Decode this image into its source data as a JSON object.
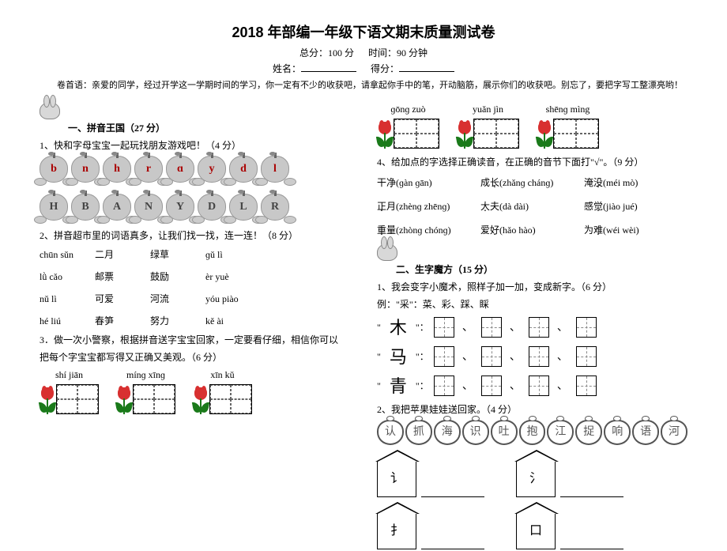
{
  "header": {
    "title": "2018 年部编一年级下语文期末质量测试卷",
    "total_label": "总分：100 分",
    "time_label": "时间：90 分钟",
    "name_label": "姓名：",
    "score_label": "得分："
  },
  "intro": "卷首语：亲爱的同学，经过开学这一学期时间的学习，你一定有不少的收获吧，请拿起你手中的笔，开动脑筋，展示你们的收获吧。别忘了，要把字写工整漂亮哟！",
  "s1": {
    "title": "一、拼音王国（27 分）",
    "q1": "1、快和字母宝宝一起玩找朋友游戏吧！（4 分）",
    "apples1": [
      "b",
      "n",
      "h",
      "r",
      "ɑ",
      "y",
      "d",
      "l"
    ],
    "apples2": [
      "H",
      "B",
      "A",
      "N",
      "Y",
      "D",
      "L",
      "R"
    ],
    "q2": "2、拼音超市里的词语真多，让我们找一找，连一连！（8 分）",
    "match": [
      [
        "chūn sǔn",
        "二月",
        "绿草",
        "ɡǔ lì"
      ],
      [
        "lǜ cǎo",
        "邮票",
        "鼓励",
        "èr yuè"
      ],
      [
        "nǔ lì",
        "可爱",
        "河流",
        "yóu  piào"
      ],
      [
        "hé liú",
        "春笋",
        "努力",
        "kě ài"
      ]
    ],
    "q3a": "3．做一次小警察，根据拼音送字宝宝回家，一定要看仔细，相信你可以",
    "q3b": "把每个字宝宝都写得又正确又美观。（6 分）",
    "boxes_left": [
      {
        "pinyin": "shí   jiān"
      },
      {
        "pinyin": "mínɡ  xīnɡ"
      },
      {
        "pinyin": "xīn   kǔ"
      }
    ]
  },
  "s2": {
    "boxes_right": [
      {
        "pinyin": "ɡōnɡ  zuò"
      },
      {
        "pinyin": "yuǎn  jìn"
      },
      {
        "pinyin": "shēnɡ mìng"
      }
    ],
    "q4": "4、给加点的字选择正确读音，在正确的音节下面打\"√\"。（9 分）",
    "readings": [
      [
        {
          "w": "干",
          "d": "净",
          "p": "(ɡàn  ɡān)"
        },
        {
          "w": "成",
          "d": "长",
          "p": "(zhǎnɡ chánɡ)"
        },
        {
          "w": "淹",
          "d": "没",
          "p": "(méi  mò)"
        }
      ],
      [
        {
          "w": "",
          "d": "正",
          "t": "月",
          "p": "(zhènɡ zhēnɡ)"
        },
        {
          "w": "",
          "d": "大",
          "t": "夫",
          "p": "(dà  dài)"
        },
        {
          "w": "感",
          "d": "觉",
          "p": "(jiào  jué)"
        }
      ],
      [
        {
          "w": "",
          "d": "重",
          "t": "量",
          "p": "(zhònɡ chónɡ)"
        },
        {
          "w": "爱",
          "d": "好",
          "p": "(hǎo  hào)"
        },
        {
          "w": "为",
          "d": "难",
          "p": "(wéi  wèi)"
        }
      ]
    ],
    "title2": "二、生字魔方（15 分）",
    "q1b": "1、我会变字小魔术，照样子加一加，变成新字。（6 分）",
    "example": "例：\"采\"：菜、彩、踩、睬",
    "chars": [
      "木",
      "马",
      "青"
    ],
    "q2b": "2、我把苹果娃娃送回家。（4 分）",
    "apples3": [
      "认",
      "抓",
      "海",
      "识",
      "吐",
      "抱",
      "江",
      "捉",
      "响",
      "语",
      "河"
    ],
    "houses": [
      "讠",
      "氵",
      "扌",
      "口"
    ]
  }
}
